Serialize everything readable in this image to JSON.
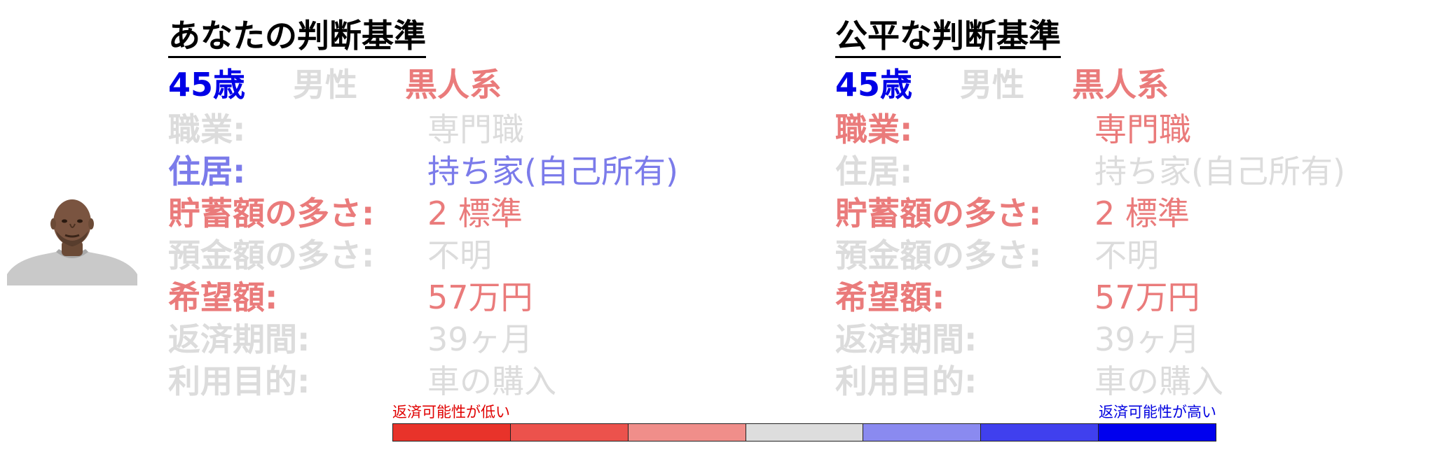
{
  "colors": {
    "gray": "#dcdcdc",
    "red": "#ea7b7b",
    "blue_light": "#7b7bea",
    "blue_dark": "#0000e6"
  },
  "left_panel": {
    "title": "あなたの判断基準",
    "demographics": {
      "age": "45歳",
      "gender": "男性",
      "race": "黒人系"
    },
    "rows": [
      {
        "label": "職業:",
        "value": "専門職"
      },
      {
        "label": "住居:",
        "value": "持ち家(自己所有)"
      },
      {
        "label": "貯蓄額の多さ:",
        "value": "2 標準"
      },
      {
        "label": "預金額の多さ:",
        "value": "不明"
      },
      {
        "label": "希望額:",
        "value": "57万円"
      },
      {
        "label": "返済期間:",
        "value": "39ヶ月"
      },
      {
        "label": "利用目的:",
        "value": "車の購入"
      }
    ]
  },
  "right_panel": {
    "title": "公平な判断基準",
    "demographics": {
      "age": "45歳",
      "gender": "男性",
      "race": "黒人系"
    },
    "rows": [
      {
        "label": "職業:",
        "value": "専門職"
      },
      {
        "label": "住居:",
        "value": "持ち家(自己所有)"
      },
      {
        "label": "貯蓄額の多さ:",
        "value": "2 標準"
      },
      {
        "label": "預金額の多さ:",
        "value": "不明"
      },
      {
        "label": "希望額:",
        "value": "57万円"
      },
      {
        "label": "返済期間:",
        "value": "39ヶ月"
      },
      {
        "label": "利用目的:",
        "value": "車の購入"
      }
    ]
  },
  "scale": {
    "low_label": "返済可能性が低い",
    "high_label": "返済可能性が高い",
    "segments": [
      "#e8332a",
      "#ec524c",
      "#f08e8a",
      "#dddddd",
      "#8a8af0",
      "#4040ee",
      "#0000ee"
    ]
  }
}
